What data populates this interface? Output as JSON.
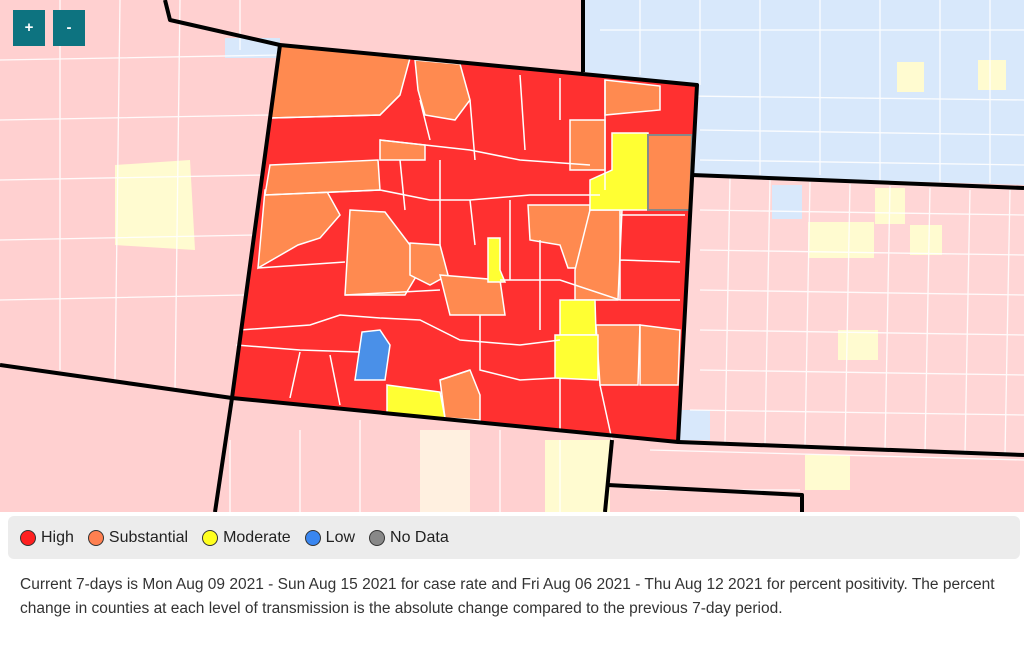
{
  "zoom": {
    "in_label": "+",
    "out_label": "-"
  },
  "colors": {
    "high": "#ff3030",
    "substantial": "#ff8a50",
    "moderate": "#ffff33",
    "low": "#4a90e8",
    "no_data": "#888888",
    "outside_high": "#ffd0d0",
    "outside_moderate": "#fffbd0",
    "outside_low": "#d8e8fb",
    "county_border": "#ffffff",
    "state_border": "#000000"
  },
  "legend": [
    {
      "label": "High",
      "color": "#ff2020"
    },
    {
      "label": "Substantial",
      "color": "#ff8050"
    },
    {
      "label": "Moderate",
      "color": "#ffff20"
    },
    {
      "label": "Low",
      "color": "#3a86f0"
    },
    {
      "label": "No Data",
      "color": "#888888"
    }
  ],
  "footnote": "Current 7-days is Mon Aug 09 2021 - Sun Aug 15 2021 for case rate and Fri Aug 06 2021 - Thu Aug 12 2021 for percent positivity. The percent change in counties at each level of transmission is the absolute change compared to the previous 7-day period."
}
